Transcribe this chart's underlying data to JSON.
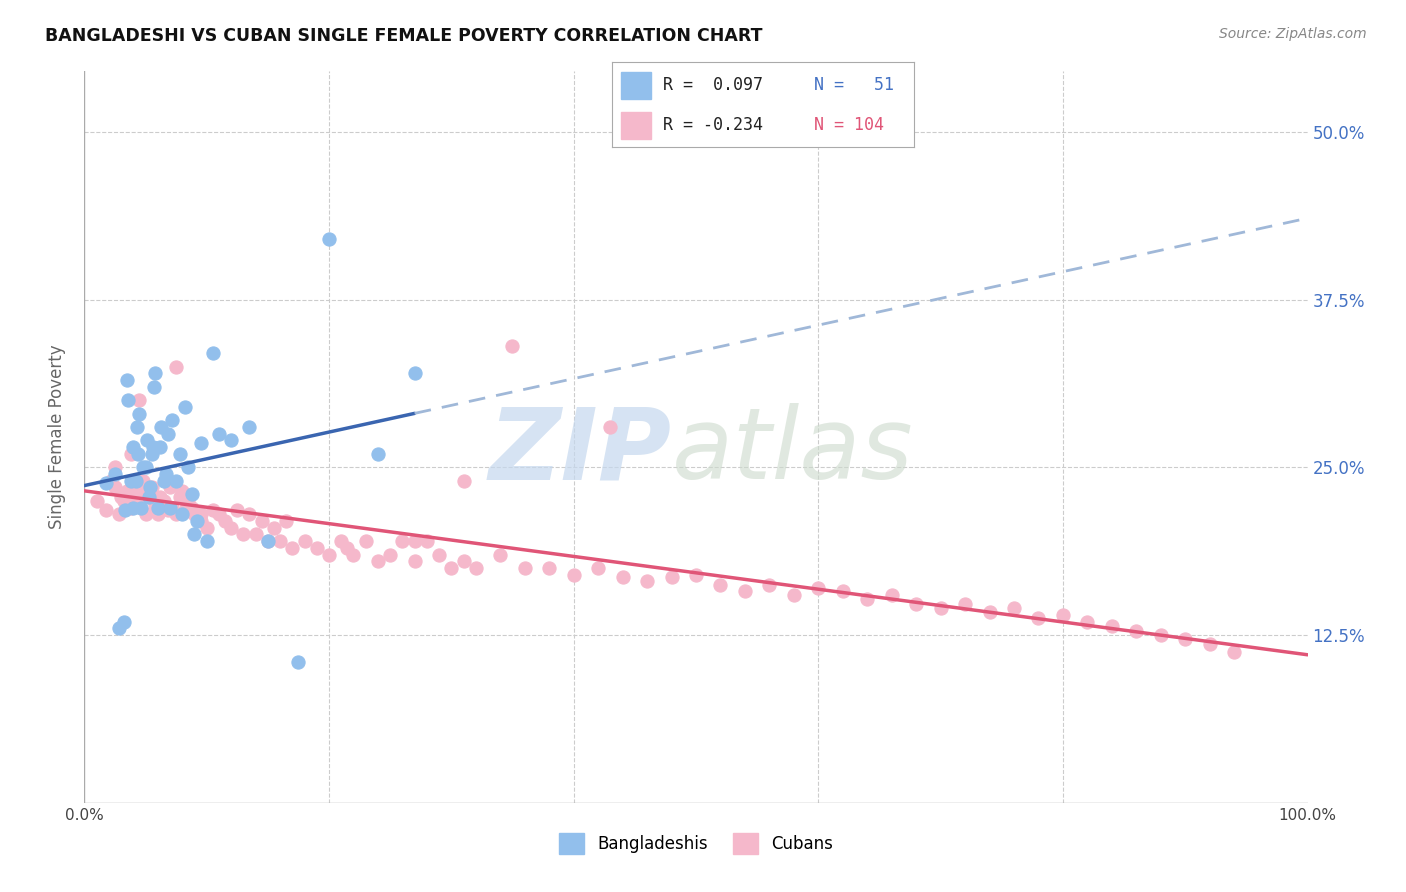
{
  "title": "BANGLADESHI VS CUBAN SINGLE FEMALE POVERTY CORRELATION CHART",
  "source": "Source: ZipAtlas.com",
  "ylabel": "Single Female Poverty",
  "xlim": [
    0.0,
    1.0
  ],
  "ylim": [
    0.0,
    0.545
  ],
  "y_tick_values_right": [
    0.125,
    0.25,
    0.375,
    0.5
  ],
  "y_tick_labels_right": [
    "12.5%",
    "25.0%",
    "37.5%",
    "50.0%"
  ],
  "color_bangladeshi": "#92bfec",
  "color_cuban": "#f5b8cb",
  "color_line_bangladeshi": "#3a65b0",
  "color_line_cuban": "#e05577",
  "color_dashed": "#a0b8d8",
  "background_color": "#ffffff",
  "grid_color": "#cccccc",
  "bangladeshi_x": [
    0.018,
    0.025,
    0.028,
    0.032,
    0.033,
    0.035,
    0.036,
    0.038,
    0.04,
    0.04,
    0.042,
    0.043,
    0.044,
    0.045,
    0.046,
    0.048,
    0.05,
    0.051,
    0.053,
    0.054,
    0.055,
    0.056,
    0.057,
    0.058,
    0.06,
    0.062,
    0.063,
    0.065,
    0.067,
    0.068,
    0.07,
    0.072,
    0.075,
    0.078,
    0.08,
    0.082,
    0.085,
    0.088,
    0.09,
    0.092,
    0.095,
    0.1,
    0.105,
    0.11,
    0.12,
    0.135,
    0.15,
    0.175,
    0.2,
    0.24,
    0.27
  ],
  "bangladeshi_y": [
    0.238,
    0.245,
    0.13,
    0.135,
    0.218,
    0.315,
    0.3,
    0.24,
    0.22,
    0.265,
    0.24,
    0.28,
    0.26,
    0.29,
    0.22,
    0.25,
    0.25,
    0.27,
    0.228,
    0.235,
    0.26,
    0.265,
    0.31,
    0.32,
    0.22,
    0.265,
    0.28,
    0.24,
    0.245,
    0.275,
    0.22,
    0.285,
    0.24,
    0.26,
    0.215,
    0.295,
    0.25,
    0.23,
    0.2,
    0.21,
    0.268,
    0.195,
    0.335,
    0.275,
    0.27,
    0.28,
    0.195,
    0.105,
    0.42,
    0.26,
    0.32
  ],
  "cuban_x": [
    0.01,
    0.018,
    0.022,
    0.025,
    0.028,
    0.03,
    0.032,
    0.035,
    0.038,
    0.04,
    0.042,
    0.045,
    0.048,
    0.05,
    0.052,
    0.055,
    0.058,
    0.06,
    0.062,
    0.065,
    0.068,
    0.07,
    0.072,
    0.075,
    0.078,
    0.08,
    0.082,
    0.085,
    0.088,
    0.09,
    0.095,
    0.1,
    0.105,
    0.11,
    0.115,
    0.12,
    0.125,
    0.13,
    0.135,
    0.14,
    0.145,
    0.15,
    0.155,
    0.16,
    0.165,
    0.17,
    0.18,
    0.19,
    0.2,
    0.21,
    0.215,
    0.22,
    0.23,
    0.24,
    0.25,
    0.26,
    0.27,
    0.28,
    0.29,
    0.3,
    0.31,
    0.32,
    0.34,
    0.36,
    0.38,
    0.4,
    0.42,
    0.44,
    0.46,
    0.48,
    0.5,
    0.52,
    0.54,
    0.56,
    0.58,
    0.6,
    0.62,
    0.64,
    0.66,
    0.68,
    0.7,
    0.72,
    0.74,
    0.76,
    0.78,
    0.8,
    0.82,
    0.84,
    0.86,
    0.88,
    0.9,
    0.92,
    0.94,
    0.095,
    0.31,
    0.27,
    0.025,
    0.038,
    0.045,
    0.075,
    0.35,
    0.43
  ],
  "cuban_y": [
    0.225,
    0.218,
    0.24,
    0.235,
    0.215,
    0.228,
    0.225,
    0.232,
    0.22,
    0.235,
    0.225,
    0.232,
    0.24,
    0.215,
    0.228,
    0.235,
    0.222,
    0.215,
    0.228,
    0.225,
    0.218,
    0.235,
    0.22,
    0.215,
    0.228,
    0.232,
    0.218,
    0.225,
    0.22,
    0.215,
    0.21,
    0.205,
    0.218,
    0.215,
    0.21,
    0.205,
    0.218,
    0.2,
    0.215,
    0.2,
    0.21,
    0.195,
    0.205,
    0.195,
    0.21,
    0.19,
    0.195,
    0.19,
    0.185,
    0.195,
    0.19,
    0.185,
    0.195,
    0.18,
    0.185,
    0.195,
    0.18,
    0.195,
    0.185,
    0.175,
    0.18,
    0.175,
    0.185,
    0.175,
    0.175,
    0.17,
    0.175,
    0.168,
    0.165,
    0.168,
    0.17,
    0.162,
    0.158,
    0.162,
    0.155,
    0.16,
    0.158,
    0.152,
    0.155,
    0.148,
    0.145,
    0.148,
    0.142,
    0.145,
    0.138,
    0.14,
    0.135,
    0.132,
    0.128,
    0.125,
    0.122,
    0.118,
    0.112,
    0.215,
    0.24,
    0.195,
    0.25,
    0.26,
    0.3,
    0.325,
    0.34,
    0.28
  ],
  "regression_b_slope": 0.35,
  "regression_b_intercept": 0.225,
  "regression_c_slope": -0.12,
  "regression_c_intercept": 0.238
}
